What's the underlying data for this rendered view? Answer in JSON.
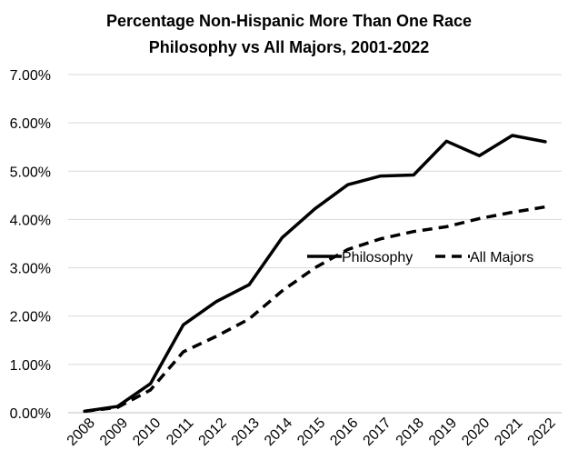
{
  "chart_data": {
    "type": "line",
    "title": "Percentage Non-Hispanic More Than One Race",
    "subtitle": "Philosophy vs All Majors, 2001-2022",
    "xlabel": "",
    "ylabel": "",
    "categories": [
      "2008",
      "2009",
      "2010",
      "2011",
      "2012",
      "2013",
      "2014",
      "2015",
      "2016",
      "2017",
      "2018",
      "2019",
      "2020",
      "2021",
      "2022"
    ],
    "ylim": [
      0,
      7
    ],
    "y_ticks": [
      "0.00%",
      "1.00%",
      "2.00%",
      "3.00%",
      "4.00%",
      "5.00%",
      "6.00%",
      "7.00%"
    ],
    "grid": true,
    "legend_position": "middle-right",
    "series": [
      {
        "name": "Philosophy",
        "style": "solid",
        "color": "#000000",
        "values": [
          0.03,
          0.13,
          0.6,
          1.82,
          2.3,
          2.65,
          3.62,
          4.22,
          4.72,
          4.9,
          4.92,
          5.62,
          5.32,
          5.74,
          5.61
        ]
      },
      {
        "name": "All Majors",
        "style": "dashed",
        "color": "#000000",
        "values": [
          0.03,
          0.11,
          0.47,
          1.26,
          1.58,
          1.94,
          2.52,
          3.0,
          3.38,
          3.6,
          3.75,
          3.85,
          4.02,
          4.15,
          4.26
        ]
      }
    ]
  }
}
